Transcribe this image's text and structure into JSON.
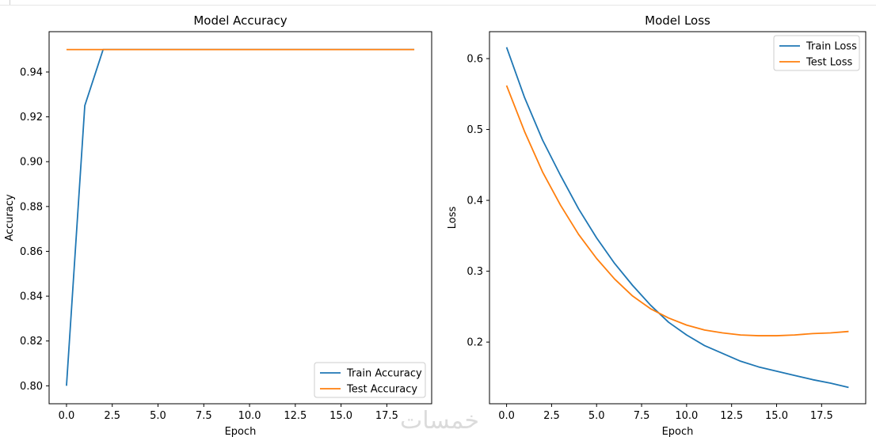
{
  "watermark": "خمسات",
  "chart_data": [
    {
      "type": "line",
      "title": "Model Accuracy",
      "xlabel": "Epoch",
      "ylabel": "Accuracy",
      "xlim": [
        -0.95,
        19.95
      ],
      "ylim": [
        0.792,
        0.958
      ],
      "xticks": [
        0.0,
        2.5,
        5.0,
        7.5,
        10.0,
        12.5,
        15.0,
        17.5
      ],
      "xtick_labels": [
        "0.0",
        "2.5",
        "5.0",
        "7.5",
        "10.0",
        "12.5",
        "15.0",
        "17.5"
      ],
      "yticks": [
        0.8,
        0.82,
        0.84,
        0.86,
        0.88,
        0.9,
        0.92,
        0.94
      ],
      "ytick_labels": [
        "0.80",
        "0.82",
        "0.84",
        "0.86",
        "0.88",
        "0.90",
        "0.92",
        "0.94"
      ],
      "grid": false,
      "legend_position": "bottom-right",
      "x": [
        0,
        1,
        2,
        3,
        4,
        5,
        6,
        7,
        8,
        9,
        10,
        11,
        12,
        13,
        14,
        15,
        16,
        17,
        18,
        19
      ],
      "series": [
        {
          "name": "Train Accuracy",
          "color": "#1f77b4",
          "values": [
            0.8,
            0.925,
            0.95,
            0.95,
            0.95,
            0.95,
            0.95,
            0.95,
            0.95,
            0.95,
            0.95,
            0.95,
            0.95,
            0.95,
            0.95,
            0.95,
            0.95,
            0.95,
            0.95,
            0.95
          ]
        },
        {
          "name": "Test Accuracy",
          "color": "#ff7f0e",
          "values": [
            0.95,
            0.95,
            0.95,
            0.95,
            0.95,
            0.95,
            0.95,
            0.95,
            0.95,
            0.95,
            0.95,
            0.95,
            0.95,
            0.95,
            0.95,
            0.95,
            0.95,
            0.95,
            0.95,
            0.95
          ]
        }
      ]
    },
    {
      "type": "line",
      "title": "Model Loss",
      "xlabel": "Epoch",
      "ylabel": "Loss",
      "xlim": [
        -0.95,
        19.95
      ],
      "ylim": [
        0.113,
        0.638
      ],
      "xticks": [
        0.0,
        2.5,
        5.0,
        7.5,
        10.0,
        12.5,
        15.0,
        17.5
      ],
      "xtick_labels": [
        "0.0",
        "2.5",
        "5.0",
        "7.5",
        "10.0",
        "12.5",
        "15.0",
        "17.5"
      ],
      "yticks": [
        0.2,
        0.3,
        0.4,
        0.5,
        0.6
      ],
      "ytick_labels": [
        "0.2",
        "0.3",
        "0.4",
        "0.5",
        "0.6"
      ],
      "grid": false,
      "legend_position": "top-right",
      "x": [
        0,
        1,
        2,
        3,
        4,
        5,
        6,
        7,
        8,
        9,
        10,
        11,
        12,
        13,
        14,
        15,
        16,
        17,
        18,
        19
      ],
      "series": [
        {
          "name": "Train Loss",
          "color": "#1f77b4",
          "values": [
            0.616,
            0.545,
            0.485,
            0.435,
            0.388,
            0.347,
            0.311,
            0.28,
            0.252,
            0.228,
            0.21,
            0.195,
            0.184,
            0.173,
            0.165,
            0.159,
            0.153,
            0.147,
            0.142,
            0.136
          ]
        },
        {
          "name": "Test Loss",
          "color": "#ff7f0e",
          "values": [
            0.562,
            0.497,
            0.44,
            0.393,
            0.352,
            0.318,
            0.289,
            0.265,
            0.247,
            0.234,
            0.224,
            0.217,
            0.213,
            0.21,
            0.209,
            0.209,
            0.21,
            0.212,
            0.213,
            0.215
          ]
        }
      ]
    }
  ]
}
